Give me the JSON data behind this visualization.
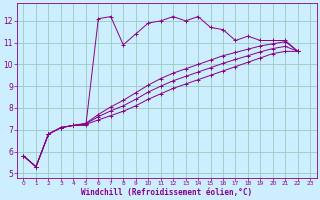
{
  "bg_color": "#cceeff",
  "line_color": "#880088",
  "grid_color": "#99ccbb",
  "xlabel": "Windchill (Refroidissement éolien,°C)",
  "xlabel_color": "#880088",
  "tick_color": "#880088",
  "spine_color": "#880088",
  "xlim": [
    -0.5,
    23.5
  ],
  "ylim": [
    4.8,
    12.8
  ],
  "yticks": [
    5,
    6,
    7,
    8,
    9,
    10,
    11,
    12
  ],
  "xticks": [
    0,
    1,
    2,
    3,
    4,
    5,
    6,
    7,
    8,
    9,
    10,
    11,
    12,
    13,
    14,
    15,
    16,
    17,
    18,
    19,
    20,
    21,
    22,
    23
  ],
  "curves": [
    [
      5.8,
      5.3,
      6.8,
      7.1,
      7.2,
      7.2,
      12.1,
      12.2,
      10.9,
      11.4,
      11.9,
      12.0,
      12.2,
      12.0,
      12.2,
      11.7,
      11.6,
      11.1,
      11.3,
      11.1,
      11.1,
      11.1,
      10.6
    ],
    [
      5.8,
      5.3,
      6.8,
      7.1,
      7.2,
      7.3,
      7.7,
      8.05,
      8.35,
      8.7,
      9.05,
      9.35,
      9.6,
      9.8,
      10.0,
      10.2,
      10.4,
      10.55,
      10.7,
      10.85,
      10.95,
      11.05,
      10.6
    ],
    [
      5.8,
      5.3,
      6.8,
      7.1,
      7.2,
      7.25,
      7.45,
      7.65,
      7.85,
      8.1,
      8.4,
      8.65,
      8.9,
      9.1,
      9.3,
      9.5,
      9.7,
      9.9,
      10.1,
      10.3,
      10.5,
      10.6,
      10.6
    ],
    [
      5.8,
      5.3,
      6.8,
      7.1,
      7.2,
      7.28,
      7.6,
      7.87,
      8.1,
      8.4,
      8.73,
      9.0,
      9.25,
      9.45,
      9.65,
      9.85,
      10.05,
      10.23,
      10.4,
      10.58,
      10.73,
      10.83,
      10.6
    ]
  ]
}
